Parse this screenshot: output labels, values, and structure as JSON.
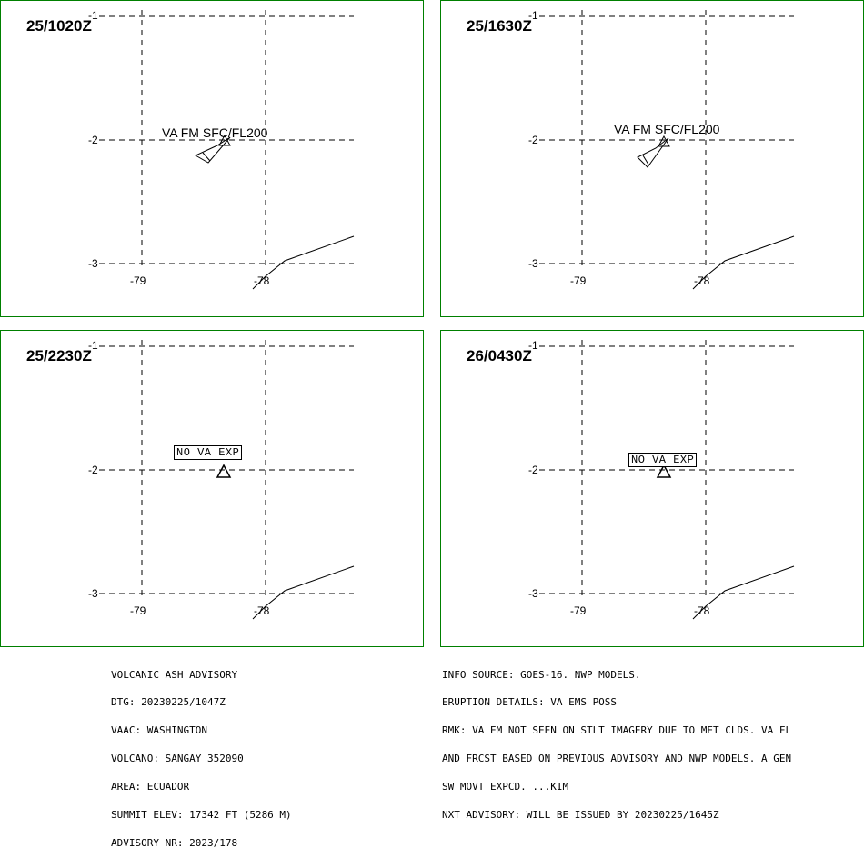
{
  "panels": [
    {
      "time": "25/1020Z",
      "label": "VA FM SFC/FL200",
      "polygon": true,
      "nova": false
    },
    {
      "time": "25/1630Z",
      "label": "VA FM SFC/FL200",
      "polygon": true,
      "nova": false
    },
    {
      "time": "25/2230Z",
      "label": "NO VA EXP",
      "polygon": false,
      "nova": true
    },
    {
      "time": "26/0430Z",
      "label": "NO VA EXP",
      "polygon": false,
      "nova": true
    }
  ],
  "axes": {
    "lat_labels": [
      "-1",
      "-2",
      "-3"
    ],
    "lon_labels": [
      "-79",
      "-78"
    ]
  },
  "left_text": [
    "VOLCANIC ASH ADVISORY",
    "DTG: 20230225/1047Z",
    "VAAC: WASHINGTON",
    "VOLCANO: SANGAY 352090",
    "AREA: ECUADOR",
    "SUMMIT ELEV: 17342 FT (5286 M)",
    "ADVISORY NR: 2023/178"
  ],
  "right_text": [
    "INFO SOURCE: GOES-16. NWP MODELS.",
    "ERUPTION DETAILS: VA EMS POSS",
    "RMK: VA EM NOT SEEN ON STLT IMAGERY DUE TO MET CLDS. VA FL",
    "AND FRCST BASED ON PREVIOUS ADVISORY AND NWP MODELS. A GEN",
    "SW MOVT EXPCD. ...KIM",
    "NXT ADVISORY: WILL BE ISSUED BY 20230225/1645Z"
  ],
  "colors": {
    "border": "#008000",
    "ink": "#000000"
  }
}
